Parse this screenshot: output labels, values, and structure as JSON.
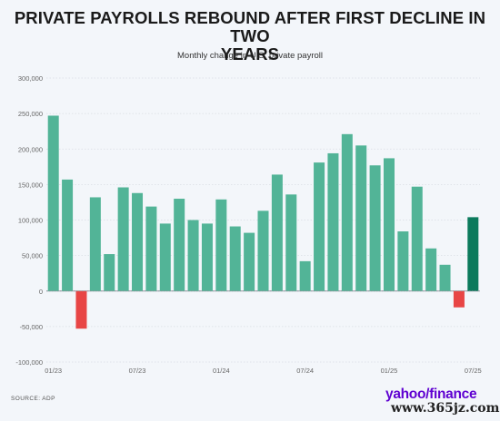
{
  "header": {
    "title_line1": "PRIVATE PAYROLLS REBOUND AFTER FIRST DECLINE IN TWO",
    "title_line2": "YEARS",
    "subtitle": "Monthly change in U.S. private payroll"
  },
  "footer": {
    "source": "SOURCE: ADP",
    "logo": "yahoo/finance",
    "watermark": "www.365jz.com"
  },
  "colors": {
    "positive": "#52b497",
    "negative": "#e84545",
    "highlight": "#0b7a5c",
    "gridline": "#d9dde3",
    "tick_text": "#666666"
  },
  "chart_data": {
    "type": "bar",
    "title": "PRIVATE PAYROLLS REBOUND AFTER FIRST DECLINE IN TWO YEARS",
    "subtitle": "Monthly change in U.S. private payroll",
    "xlabel": "",
    "ylabel": "",
    "ylim": [
      -100000,
      300000
    ],
    "yticks": [
      300000,
      250000,
      200000,
      150000,
      100000,
      50000,
      0,
      -50000,
      -100000
    ],
    "ytick_labels": [
      "300,000",
      "250,000",
      "200,000",
      "150,000",
      "100,000",
      "50,000",
      "0",
      "-50,000",
      "-100,000"
    ],
    "xtick_labels": [
      {
        "index": 0,
        "label": "01/23"
      },
      {
        "index": 6,
        "label": "07/23"
      },
      {
        "index": 12,
        "label": "01/24"
      },
      {
        "index": 18,
        "label": "07/24"
      },
      {
        "index": 24,
        "label": "01/25"
      },
      {
        "index": 30,
        "label": "07/25"
      }
    ],
    "grid": true,
    "values": [
      247000,
      157000,
      -53000,
      132000,
      52000,
      146000,
      138000,
      119000,
      95000,
      130000,
      100000,
      95000,
      129000,
      91000,
      82000,
      113000,
      164000,
      136000,
      42000,
      181000,
      194000,
      221000,
      205000,
      177000,
      187000,
      84000,
      147000,
      60000,
      37000,
      -23000,
      104000
    ],
    "highlight_index": 30
  }
}
